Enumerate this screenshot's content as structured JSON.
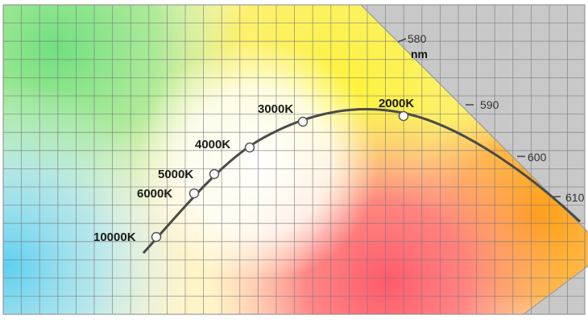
{
  "diagram": {
    "colors": {
      "background": "#ffffff",
      "grid": "#7a7a7a",
      "gamut_outside": "#c8c8c8",
      "curve": "#4a4a4a",
      "point_fill": "#ffffff",
      "point_stroke": "#555555"
    },
    "temperature_points": [
      {
        "label": "10000K"
      },
      {
        "label": "6000K"
      },
      {
        "label": "5000K"
      },
      {
        "label": "4000K"
      },
      {
        "label": "3000K"
      },
      {
        "label": "2000K"
      }
    ],
    "wavelength_ticks": [
      {
        "label": "580"
      },
      {
        "label": "590"
      },
      {
        "label": "600"
      },
      {
        "label": "610"
      }
    ],
    "wavelength_unit": "nm"
  }
}
